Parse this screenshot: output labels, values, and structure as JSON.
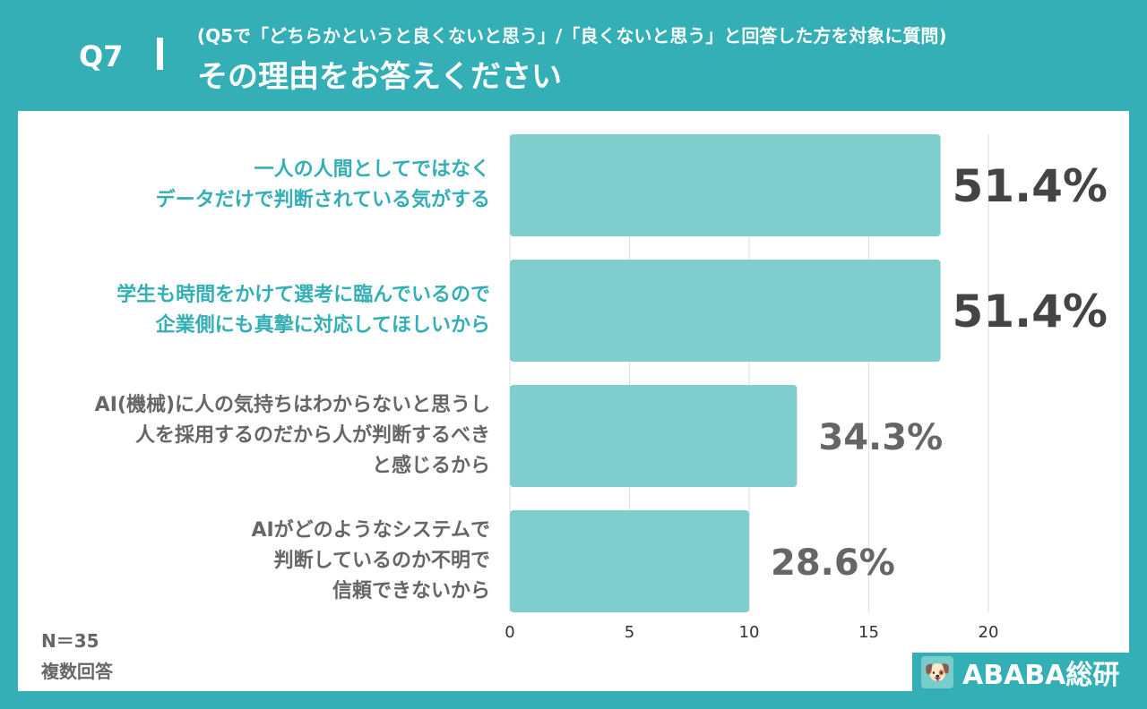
{
  "header": {
    "q": "Q7",
    "subtitle": "(Q5で「どちらかというと良くないと思う」/「良くないと思う」と回答した方を対象に質問)",
    "title": "その理由をお答えください"
  },
  "chart_data": {
    "type": "bar",
    "orientation": "horizontal",
    "categories": [
      [
        "一人の人間としてではなく",
        "データだけで判断されている気がする"
      ],
      [
        "学生も時間をかけて選考に臨んでいるので",
        "企業側にも真摯に対応してほしいから"
      ],
      [
        "AI(機械)に人の気持ちはわからないと思うし",
        "人を採用するのだから人が判断するべき",
        "と感じるから"
      ],
      [
        "AIがどのようなシステムで",
        "判断しているのか不明で",
        "信頼できないから"
      ]
    ],
    "values": [
      18,
      18,
      12,
      10
    ],
    "data_labels": [
      "51.4%",
      "51.4%",
      "34.3%",
      "28.6%"
    ],
    "xticks": [
      "0",
      "5",
      "10",
      "15",
      "20"
    ],
    "xlim": [
      0,
      25
    ],
    "grid": true,
    "colors": {
      "bar": "#7fcdcc",
      "highlight_label": "#33afb5",
      "label": "#666666",
      "value_top": "#444444"
    }
  },
  "notes": {
    "n": "N＝35",
    "multi": "複数回答"
  },
  "logo": {
    "text": "ABABA総研"
  }
}
